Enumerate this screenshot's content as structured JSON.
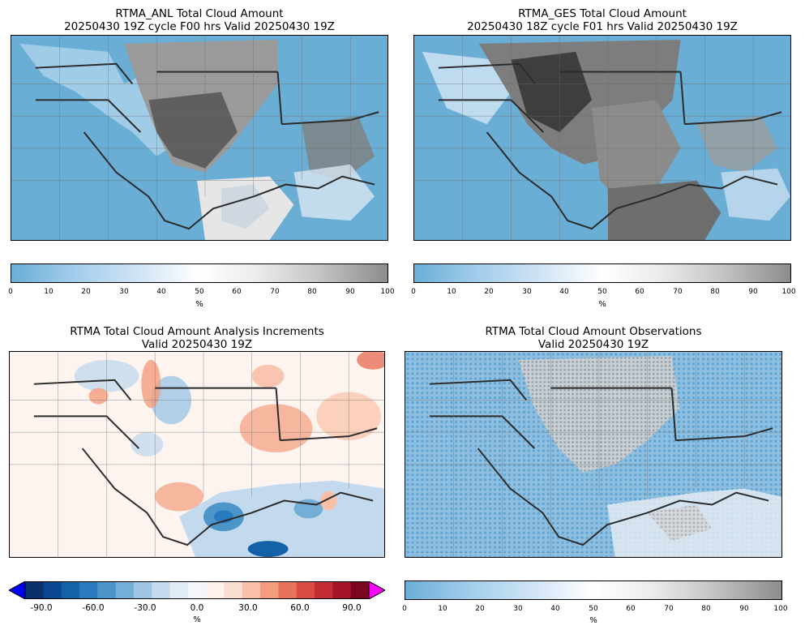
{
  "panels": {
    "anl": {
      "title_line1": "RTMA_ANL Total Cloud Amount",
      "title_line2": "20250430 19Z cycle F00 hrs Valid 20250430 19Z"
    },
    "ges": {
      "title_line1": "RTMA_GES Total Cloud Amount",
      "title_line2": "20250430 18Z cycle F01 hrs Valid 20250430 19Z"
    },
    "inc": {
      "title_line1": "RTMA Total Cloud Amount Analysis Increments",
      "title_line2": "Valid 20250430 19Z"
    },
    "obs": {
      "title_line1": "RTMA Total Cloud Amount Observations",
      "title_line2": "Valid 20250430 19Z"
    }
  },
  "colorbars": {
    "sequential": {
      "ticks": [
        "0",
        "10",
        "20",
        "30",
        "40",
        "50",
        "60",
        "70",
        "80",
        "90",
        "100"
      ],
      "label": "%"
    },
    "diverging": {
      "ticks": [
        "-90.0",
        "-60.0",
        "-30.0",
        "0.0",
        "30.0",
        "60.0",
        "90.0"
      ],
      "label": "%",
      "colors": [
        "#0a2f6b",
        "#08478f",
        "#1461a8",
        "#2a7bbd",
        "#4b95c9",
        "#74aed6",
        "#9ec5e3",
        "#c3daee",
        "#e0ebf6",
        "#f3f6fa",
        "#fdf1ec",
        "#fbdcd0",
        "#f9c0a8",
        "#f49d7e",
        "#e8735b",
        "#d94c43",
        "#c12d33",
        "#a31527",
        "#7c0520"
      ],
      "under_color": "#0000ff",
      "over_color": "#ff00ff"
    }
  }
}
